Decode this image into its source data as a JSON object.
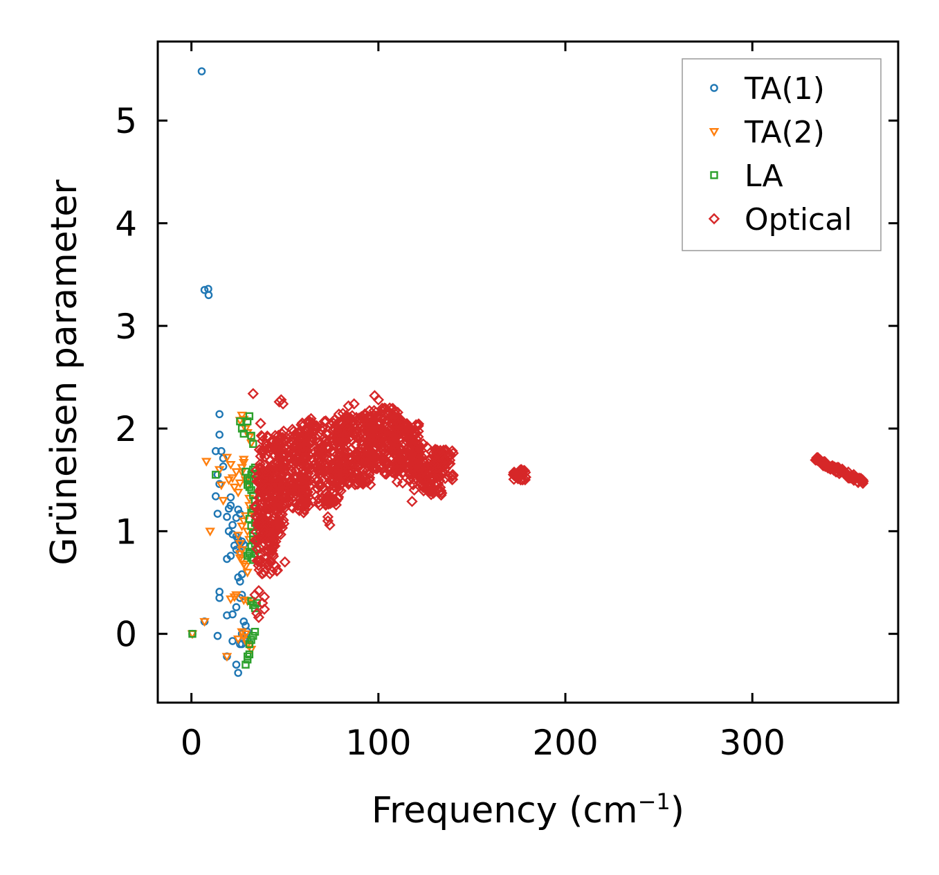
{
  "chart_data": {
    "type": "scatter",
    "xlabel": "Frequency (cm",
    "xlabel_sup": "−1",
    "xlabel_close": ")",
    "ylabel": "Grüneisen parameter",
    "xlim": [
      -18,
      378
    ],
    "ylim": [
      -0.67,
      5.77
    ],
    "xticks": [
      0,
      100,
      200,
      300
    ],
    "yticks": [
      0,
      1,
      2,
      3,
      4,
      5
    ],
    "legend_position": "top-right",
    "series": [
      {
        "name": "TA(1)",
        "marker": "circle",
        "color": "#1f77b4",
        "x": [
          5.5,
          7,
          9,
          9.2,
          15,
          15,
          16,
          13,
          14,
          17,
          17,
          15,
          21,
          21,
          13,
          14,
          20,
          19,
          25,
          26,
          22,
          24,
          20,
          22,
          24,
          25,
          26,
          27,
          26,
          28,
          23,
          24,
          21,
          19,
          27,
          25,
          26,
          15,
          15,
          27,
          26,
          24,
          22,
          19,
          28,
          29,
          30,
          27,
          28,
          30,
          29,
          27,
          26,
          22,
          19,
          24,
          25,
          0.5,
          7,
          14
        ],
        "y": [
          5.48,
          3.35,
          3.36,
          3.3,
          2.14,
          1.94,
          1.78,
          1.78,
          1.55,
          1.71,
          1.63,
          1.46,
          1.33,
          1.25,
          1.34,
          1.17,
          1.22,
          1.14,
          1.21,
          1.17,
          1.06,
          1.13,
          1.0,
          0.97,
          0.95,
          0.92,
          0.88,
          0.9,
          0.8,
          0.87,
          0.86,
          0.82,
          0.76,
          0.73,
          0.58,
          0.55,
          0.51,
          0.41,
          0.35,
          0.38,
          0.35,
          0.26,
          0.19,
          0.18,
          0.12,
          0.08,
          0.02,
          0.0,
          -0.05,
          -0.06,
          -0.04,
          -0.1,
          -0.1,
          -0.07,
          -0.22,
          -0.3,
          -0.38,
          0.0,
          0.12,
          -0.02
        ]
      },
      {
        "name": "TA(2)",
        "marker": "triangle-down",
        "color": "#ff7f0e",
        "x": [
          8,
          10,
          15,
          16,
          17,
          19,
          20,
          21,
          22,
          24,
          23,
          25,
          26,
          27,
          27,
          28,
          28,
          29,
          30,
          30,
          31,
          31,
          32,
          29,
          28,
          27,
          30,
          31,
          25,
          26,
          27,
          26,
          26,
          27,
          28,
          29,
          30,
          21,
          23,
          24,
          28,
          30,
          32,
          27,
          28,
          29,
          30,
          31,
          32,
          26,
          27,
          28,
          29,
          30,
          31,
          32,
          0.5,
          7,
          19,
          25,
          29
        ],
        "y": [
          1.68,
          1.0,
          1.6,
          1.45,
          1.3,
          1.72,
          1.5,
          1.65,
          1.52,
          1.58,
          1.43,
          1.38,
          1.47,
          1.62,
          1.58,
          1.7,
          1.67,
          1.5,
          1.52,
          1.45,
          1.32,
          1.25,
          1.2,
          1.15,
          1.1,
          1.05,
          1.0,
          0.92,
          0.96,
          0.88,
          0.82,
          0.78,
          0.74,
          0.72,
          0.68,
          0.66,
          0.6,
          0.34,
          0.36,
          0.38,
          0.33,
          0.32,
          0.3,
          0.02,
          -0.03,
          -0.06,
          -0.1,
          -0.12,
          -0.15,
          2.08,
          2.13,
          2.09,
          2.0,
          1.96,
          1.92,
          1.86,
          0.0,
          0.12,
          -0.22,
          -0.05,
          0.0
        ]
      },
      {
        "name": "LA",
        "marker": "square",
        "color": "#2ca02c",
        "x": [
          13,
          26,
          27,
          28,
          30,
          31,
          32,
          33,
          34,
          34,
          33,
          32,
          31,
          30,
          29,
          30,
          31,
          32,
          33,
          34,
          33,
          32,
          31,
          32,
          33,
          34,
          35,
          33,
          32,
          31,
          32,
          33,
          34,
          35,
          34,
          33,
          31,
          30,
          32,
          33,
          34,
          35,
          34,
          33,
          32,
          31,
          30,
          29,
          30,
          31,
          0.5
        ],
        "y": [
          1.55,
          2.07,
          2.0,
          1.95,
          2.07,
          2.12,
          1.93,
          1.85,
          1.62,
          1.56,
          1.6,
          1.55,
          1.5,
          1.52,
          1.58,
          1.45,
          1.43,
          1.4,
          1.35,
          1.3,
          1.22,
          1.18,
          1.12,
          1.05,
          0.98,
          1.08,
          1.05,
          0.92,
          0.85,
          0.78,
          0.74,
          0.72,
          0.78,
          0.82,
          0.88,
          0.95,
          0.8,
          0.76,
          0.32,
          0.28,
          0.25,
          0.3,
          0.02,
          -0.02,
          -0.06,
          -0.1,
          -0.25,
          -0.3,
          -0.22,
          -0.2,
          0.0
        ]
      },
      {
        "name": "Optical",
        "marker": "diamond",
        "color": "#d62728",
        "clusters": [
          {
            "xmin": 34,
            "xmax": 46,
            "ymin": 0.58,
            "ymax": 1.6,
            "n": 150
          },
          {
            "xmin": 36,
            "xmax": 50,
            "ymin": 0.95,
            "ymax": 1.95,
            "n": 140
          },
          {
            "xmin": 46,
            "xmax": 62,
            "ymin": 1.2,
            "ymax": 2.0,
            "n": 180
          },
          {
            "xmin": 58,
            "xmax": 80,
            "ymin": 1.25,
            "ymax": 2.1,
            "n": 240
          },
          {
            "xmin": 78,
            "xmax": 96,
            "ymin": 1.45,
            "ymax": 2.15,
            "n": 200
          },
          {
            "xmin": 94,
            "xmax": 112,
            "ymin": 1.55,
            "ymax": 2.2,
            "n": 200
          },
          {
            "xmin": 108,
            "xmax": 122,
            "ymin": 1.55,
            "ymax": 2.05,
            "n": 140
          },
          {
            "xmin": 118,
            "xmax": 134,
            "ymin": 1.35,
            "ymax": 1.75,
            "n": 110
          },
          {
            "xmin": 128,
            "xmax": 140,
            "ymin": 1.5,
            "ymax": 1.8,
            "n": 60
          },
          {
            "xmin": 172,
            "xmax": 179,
            "ymin": 1.5,
            "ymax": 1.6,
            "n": 30
          }
        ],
        "line_segment": {
          "x0": 334,
          "y0": 1.7,
          "x1": 360,
          "y1": 1.47,
          "n": 70,
          "spread": 0.06
        },
        "x": [
          33,
          37,
          38,
          38,
          36,
          39,
          48,
          47,
          49,
          60,
          73,
          74,
          73,
          98,
          100,
          84,
          87,
          110,
          113,
          118,
          117,
          124,
          126,
          35,
          38,
          39,
          36,
          34,
          46,
          45,
          50,
          130,
          136,
          140
        ],
        "y": [
          2.34,
          2.05,
          1.92,
          1.88,
          0.42,
          0.36,
          2.28,
          2.26,
          2.24,
          1.18,
          1.1,
          1.06,
          1.14,
          2.32,
          2.28,
          2.22,
          2.24,
          1.48,
          1.47,
          1.29,
          1.5,
          1.85,
          1.82,
          0.2,
          0.3,
          0.24,
          0.16,
          0.38,
          0.62,
          0.66,
          0.7,
          1.65,
          1.78,
          1.76
        ]
      }
    ]
  }
}
